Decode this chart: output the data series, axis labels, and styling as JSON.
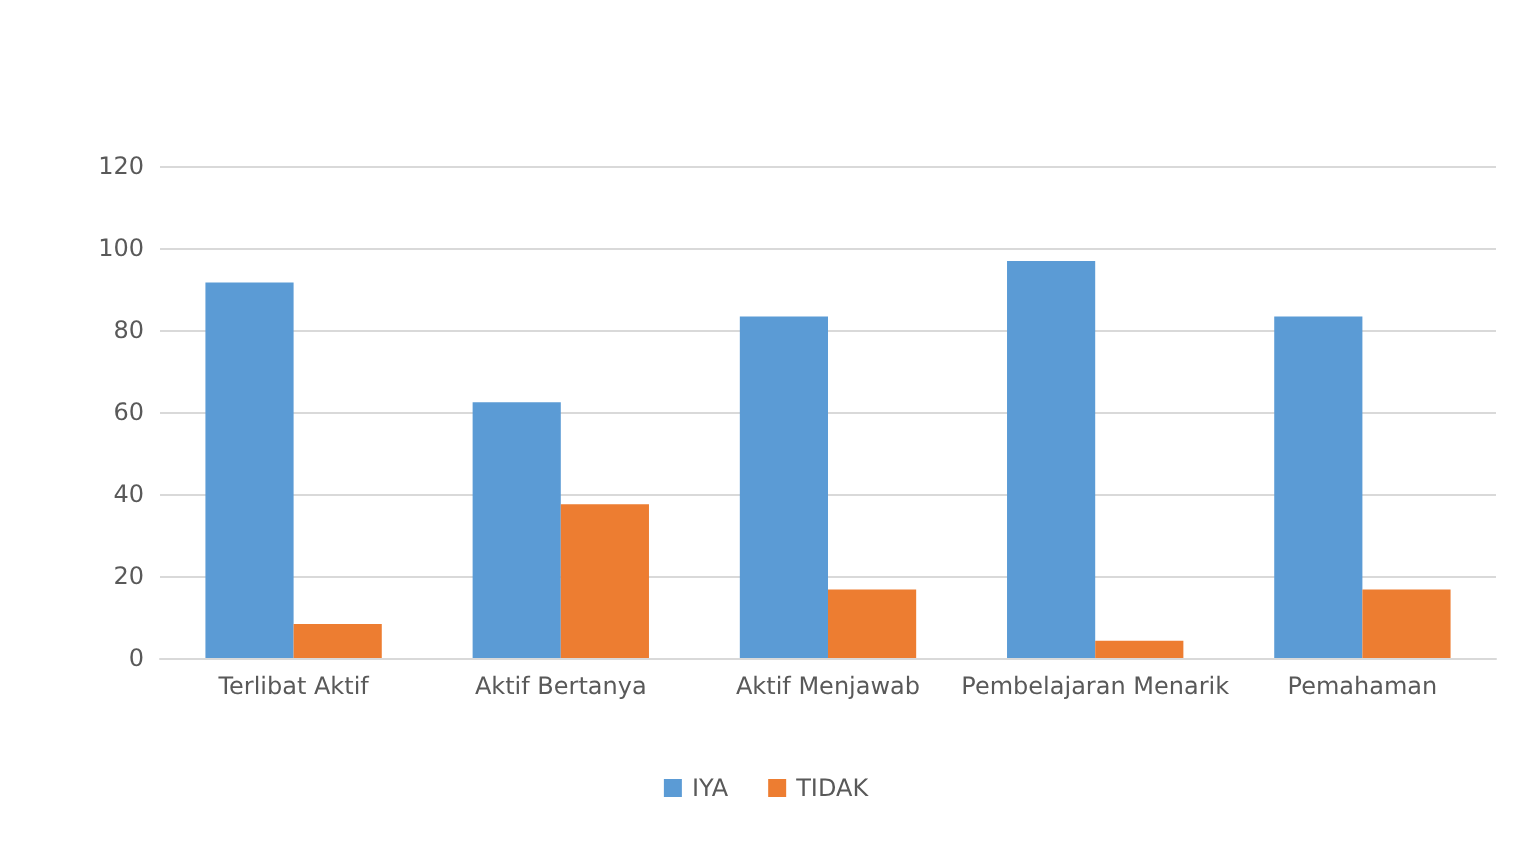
{
  "chart_data": {
    "type": "bar",
    "categories": [
      "Terlibat Aktif",
      "Aktif Bertanya",
      "Aktif Menjawab",
      "Pembelajaran Menarik",
      "Pemahaman"
    ],
    "series": [
      {
        "name": "IYA",
        "color": "#5b9bd5",
        "values": [
          91.6,
          62.4,
          83.3,
          96.8,
          83.3
        ]
      },
      {
        "name": "TIDAK",
        "color": "#ed7d31",
        "values": [
          8.3,
          37.5,
          16.7,
          4.2,
          16.7
        ]
      }
    ],
    "ylim": [
      0,
      120
    ],
    "yticks": [
      0,
      20,
      40,
      60,
      80,
      100,
      120
    ],
    "grid": "y",
    "legend": "bottom"
  }
}
